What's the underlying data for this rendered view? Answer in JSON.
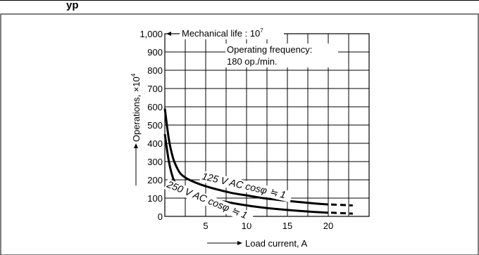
{
  "header": {
    "title_fragment": "yp"
  },
  "chart_data": {
    "type": "line",
    "xlabel": "Load current, A",
    "ylabel": "Operations, ×10",
    "ylabel_exponent": "4",
    "x_ticks": [
      5,
      10,
      15,
      20
    ],
    "y_ticks": [
      0,
      100,
      200,
      300,
      400,
      500,
      600,
      700,
      800,
      900,
      1000
    ],
    "y_tick_labels": [
      "0",
      "100",
      "200",
      "300",
      "400",
      "500",
      "600",
      "700",
      "800",
      "900",
      "1,000"
    ],
    "xlim": [
      0,
      25
    ],
    "ylim": [
      0,
      1000
    ],
    "grid": true,
    "annotations": {
      "mechanical_life": "Mechanical life : 10",
      "mechanical_life_exponent": "7",
      "operating_frequency_line1": "Operating frequency:",
      "operating_frequency_line2": "180 op./min."
    },
    "series": [
      {
        "name": "125 V AC cosφ ≒ 1",
        "x": [
          0,
          0.5,
          1,
          1.5,
          2,
          3,
          5,
          8,
          10,
          12,
          15,
          18,
          20
        ],
        "y": [
          590,
          420,
          320,
          265,
          230,
          200,
          165,
          130,
          115,
          100,
          85,
          72,
          65
        ],
        "dashed_extension_x": [
          20,
          23
        ],
        "dashed_extension_y": [
          65,
          60
        ]
      },
      {
        "name": "250 V AC cosφ ≒ 1",
        "x": [
          0,
          0.5,
          1,
          1.5,
          2,
          3,
          5,
          8,
          10,
          12,
          15,
          18,
          20
        ],
        "y": [
          450,
          300,
          210,
          165,
          140,
          120,
          100,
          75,
          60,
          48,
          35,
          25,
          20
        ],
        "dashed_extension_x": [
          20,
          23
        ],
        "dashed_extension_y": [
          20,
          15
        ]
      }
    ]
  }
}
